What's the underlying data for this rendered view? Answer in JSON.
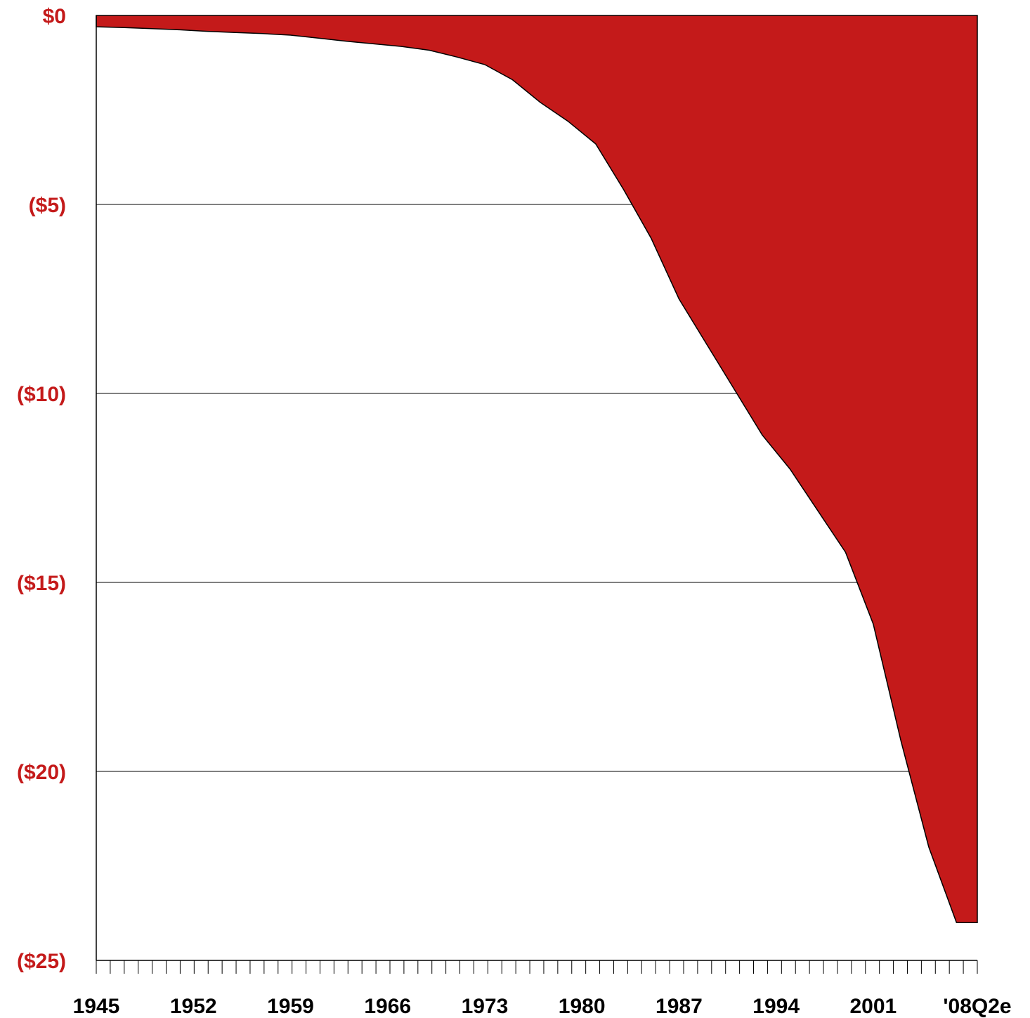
{
  "chart_data": {
    "type": "area",
    "title": "",
    "xlabel": "",
    "ylabel": "",
    "x": [
      1945,
      1947,
      1949,
      1951,
      1953,
      1955,
      1957,
      1959,
      1961,
      1963,
      1965,
      1967,
      1969,
      1971,
      1973,
      1975,
      1977,
      1979,
      1981,
      1983,
      1985,
      1987,
      1989,
      1991,
      1993,
      1995,
      1997,
      1999,
      2001,
      2003,
      2005,
      2007,
      2008.5
    ],
    "values": [
      -0.3,
      -0.32,
      -0.35,
      -0.38,
      -0.42,
      -0.45,
      -0.48,
      -0.52,
      -0.6,
      -0.68,
      -0.75,
      -0.82,
      -0.92,
      -1.1,
      -1.3,
      -1.7,
      -2.3,
      -2.8,
      -3.4,
      -4.6,
      -5.9,
      -7.5,
      -8.7,
      -9.9,
      -11.1,
      -12.0,
      -13.1,
      -14.2,
      -16.1,
      -19.2,
      -22.0,
      -24.0,
      -24.0
    ],
    "ylim": [
      -25,
      0
    ],
    "xlim": [
      1945,
      2008.5
    ],
    "yticks": [
      0,
      -5,
      -10,
      -15,
      -20,
      -25
    ],
    "ytick_labels": [
      "$0",
      "($5)",
      "($10)",
      "($15)",
      "($20)",
      "($25)"
    ],
    "xticks": [
      1945,
      1952,
      1959,
      1966,
      1973,
      1980,
      1987,
      1994,
      2001,
      2008.5
    ],
    "xtick_labels": [
      "1945",
      "1952",
      "1959",
      "1966",
      "1973",
      "1980",
      "1987",
      "1994",
      "2001",
      "'08Q2e"
    ],
    "minor_tick_count": 63,
    "grid": true,
    "colors": {
      "fill": "#c41a1a",
      "label": "#c41a1a",
      "axis": "#000000"
    }
  }
}
